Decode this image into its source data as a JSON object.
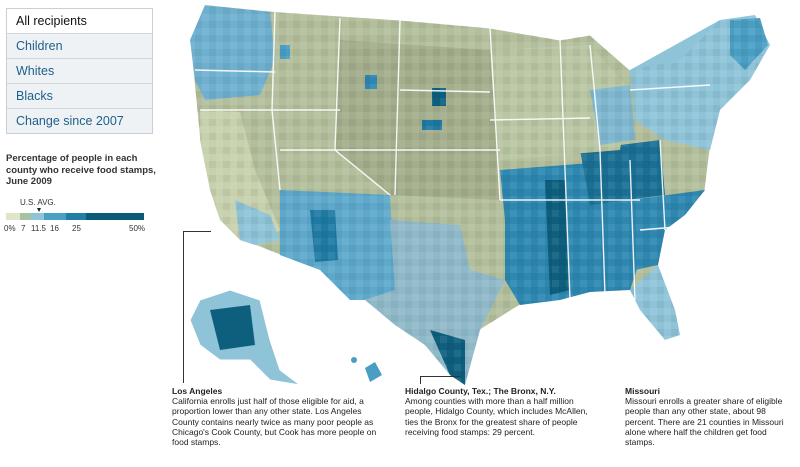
{
  "tabs": [
    {
      "label": "All recipients",
      "active": true
    },
    {
      "label": "Children",
      "active": false
    },
    {
      "label": "Whites",
      "active": false
    },
    {
      "label": "Blacks",
      "active": false
    },
    {
      "label": "Change since 2007",
      "active": false
    }
  ],
  "legend": {
    "title": "Percentage of people in each county who receive food stamps, June 2009",
    "avg_label": "U.S. AVG.",
    "avg_value": 11.5,
    "ticks": [
      "0%",
      "7",
      "11.5",
      "16",
      "25",
      "50%"
    ],
    "colors": [
      "#dde7c8",
      "#a8c2a0",
      "#8ec3d8",
      "#4aa0c4",
      "#1f7fa8",
      "#0b5b78"
    ]
  },
  "colors": {
    "background": "#ffffff",
    "land_low": "#b3bf9c",
    "land_mid": "#8ec3d8",
    "land_high": "#2d87b0",
    "land_highest": "#0d5f7d",
    "state_border": "#ffffff"
  },
  "notes": {
    "la": {
      "title": "Los Angeles",
      "body": "California enrolls just half of those eligible for aid, a proportion lower than any other state. Los Angeles County contains nearly twice as many poor people as Chicago's Cook County, but Cook has more people on food stamps."
    },
    "hidalgo": {
      "title": "Hidalgo County, Tex.; The Bronx, N.Y.",
      "body": "Among counties with more than a half million people, Hidalgo County, which includes McAllen, ties the Bronx for the greatest share of people receiving food stamps: 29 percent."
    },
    "missouri": {
      "title": "Missouri",
      "body": "Missouri enrolls a greater share of eligible people than any other state, about 98 percent. There are 21 counties in Missouri alone where half the children get food stamps."
    }
  }
}
